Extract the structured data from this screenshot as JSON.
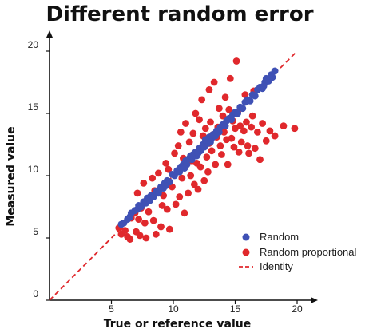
{
  "chart_data": {
    "type": "scatter",
    "title": "Different random error",
    "xlabel": "True or reference value",
    "ylabel": "Measured value",
    "xlim": [
      0,
      20
    ],
    "ylim": [
      0,
      20
    ],
    "xticks": [
      0,
      5,
      10,
      15,
      20
    ],
    "yticks": [
      0,
      5,
      10,
      15,
      20
    ],
    "x_tick_labels": [
      "5",
      "10",
      "15",
      "20"
    ],
    "y_tick_labels": [
      "0",
      "5",
      "10",
      "15",
      "20"
    ],
    "grid": false,
    "legend_position": "bottom-right",
    "legend": {
      "random": "Random",
      "proportional": "Random proportional",
      "identity": "Identity"
    },
    "series": [
      {
        "name": "Random",
        "kind": "scatter",
        "color": "#3f51b5",
        "points": [
          [
            5.8,
            6.1
          ],
          [
            6.0,
            6.2
          ],
          [
            6.3,
            6.5
          ],
          [
            6.5,
            6.7
          ],
          [
            6.6,
            7.0
          ],
          [
            6.9,
            7.2
          ],
          [
            7.1,
            7.3
          ],
          [
            7.2,
            7.6
          ],
          [
            7.4,
            7.5
          ],
          [
            7.6,
            7.9
          ],
          [
            7.8,
            7.8
          ],
          [
            7.9,
            8.2
          ],
          [
            8.1,
            8.0
          ],
          [
            8.2,
            8.4
          ],
          [
            8.4,
            8.3
          ],
          [
            8.6,
            8.7
          ],
          [
            8.8,
            8.6
          ],
          [
            9.0,
            9.1
          ],
          [
            9.2,
            9.0
          ],
          [
            9.3,
            9.4
          ],
          [
            9.5,
            9.6
          ],
          [
            9.7,
            9.5
          ],
          [
            9.9,
            10.1
          ],
          [
            10.1,
            10.0
          ],
          [
            10.3,
            10.4
          ],
          [
            10.5,
            10.3
          ],
          [
            10.6,
            10.7
          ],
          [
            10.8,
            10.9
          ],
          [
            11.0,
            11.2
          ],
          [
            11.1,
            10.9
          ],
          [
            11.3,
            11.4
          ],
          [
            11.5,
            11.3
          ],
          [
            11.6,
            11.7
          ],
          [
            11.8,
            11.9
          ],
          [
            11.9,
            11.6
          ],
          [
            12.1,
            12.2
          ],
          [
            12.2,
            12.0
          ],
          [
            12.4,
            12.5
          ],
          [
            12.5,
            12.3
          ],
          [
            12.7,
            12.8
          ],
          [
            12.8,
            12.6
          ],
          [
            12.9,
            13.1
          ],
          [
            13.1,
            13.0
          ],
          [
            13.2,
            13.3
          ],
          [
            13.4,
            13.2
          ],
          [
            13.5,
            13.6
          ],
          [
            13.7,
            13.5
          ],
          [
            13.8,
            13.9
          ],
          [
            14.0,
            14.1
          ],
          [
            14.2,
            14.0
          ],
          [
            14.3,
            14.4
          ],
          [
            14.5,
            14.6
          ],
          [
            14.7,
            14.5
          ],
          [
            14.8,
            14.9
          ],
          [
            15.0,
            15.1
          ],
          [
            15.2,
            15.0
          ],
          [
            15.4,
            15.5
          ],
          [
            15.6,
            15.4
          ],
          [
            15.8,
            15.9
          ],
          [
            16.0,
            16.1
          ],
          [
            16.2,
            16.0
          ],
          [
            16.4,
            16.5
          ],
          [
            16.6,
            16.4
          ],
          [
            16.8,
            16.9
          ],
          [
            17.0,
            17.1
          ],
          [
            17.2,
            17.0
          ],
          [
            17.4,
            17.5
          ],
          [
            17.5,
            17.8
          ],
          [
            17.7,
            17.6
          ],
          [
            17.9,
            18.1
          ],
          [
            18.0,
            17.9
          ],
          [
            18.2,
            18.4
          ],
          [
            17.3,
            17.2
          ],
          [
            12.0,
            11.8
          ],
          [
            11.4,
            11.6
          ],
          [
            10.9,
            10.6
          ],
          [
            12.6,
            12.9
          ],
          [
            13.0,
            12.7
          ],
          [
            9.4,
            9.2
          ],
          [
            8.9,
            8.9
          ]
        ]
      },
      {
        "name": "Random proportional",
        "kind": "scatter",
        "color": "#e0282c",
        "points": [
          [
            5.6,
            5.8
          ],
          [
            5.8,
            5.3
          ],
          [
            6.1,
            5.6
          ],
          [
            6.3,
            5.1
          ],
          [
            6.5,
            4.9
          ],
          [
            6.6,
            6.6
          ],
          [
            6.9,
            7.0
          ],
          [
            7.0,
            5.5
          ],
          [
            7.1,
            8.6
          ],
          [
            7.2,
            6.5
          ],
          [
            7.3,
            5.2
          ],
          [
            7.4,
            7.4
          ],
          [
            7.6,
            9.4
          ],
          [
            7.7,
            6.2
          ],
          [
            7.8,
            5.0
          ],
          [
            7.9,
            8.1
          ],
          [
            8.0,
            7.1
          ],
          [
            8.3,
            9.8
          ],
          [
            8.4,
            6.4
          ],
          [
            8.5,
            8.8
          ],
          [
            8.6,
            5.3
          ],
          [
            8.8,
            10.2
          ],
          [
            9.0,
            5.9
          ],
          [
            9.1,
            7.6
          ],
          [
            9.2,
            8.4
          ],
          [
            9.4,
            11.0
          ],
          [
            9.5,
            7.3
          ],
          [
            9.6,
            10.5
          ],
          [
            9.7,
            5.7
          ],
          [
            9.9,
            9.1
          ],
          [
            10.1,
            11.8
          ],
          [
            10.2,
            7.7
          ],
          [
            10.4,
            12.4
          ],
          [
            10.5,
            8.3
          ],
          [
            10.6,
            13.5
          ],
          [
            10.7,
            9.8
          ],
          [
            10.8,
            11.4
          ],
          [
            10.9,
            7.0
          ],
          [
            11.0,
            14.2
          ],
          [
            11.2,
            8.6
          ],
          [
            11.3,
            12.7
          ],
          [
            11.4,
            10.0
          ],
          [
            11.6,
            13.4
          ],
          [
            11.7,
            9.3
          ],
          [
            11.8,
            15.0
          ],
          [
            11.9,
            11.0
          ],
          [
            12.0,
            8.9
          ],
          [
            12.1,
            14.5
          ],
          [
            12.2,
            10.7
          ],
          [
            12.3,
            16.1
          ],
          [
            12.4,
            13.2
          ],
          [
            12.5,
            9.6
          ],
          [
            12.6,
            13.8
          ],
          [
            12.7,
            11.5
          ],
          [
            12.8,
            10.3
          ],
          [
            12.9,
            16.9
          ],
          [
            13.0,
            14.3
          ],
          [
            13.1,
            12.0
          ],
          [
            13.2,
            13.3
          ],
          [
            13.3,
            17.5
          ],
          [
            13.4,
            10.9
          ],
          [
            13.5,
            13.1
          ],
          [
            13.7,
            15.4
          ],
          [
            13.8,
            12.4
          ],
          [
            13.9,
            11.7
          ],
          [
            14.0,
            14.8
          ],
          [
            14.1,
            13.5
          ],
          [
            14.2,
            16.3
          ],
          [
            14.3,
            12.9
          ],
          [
            14.4,
            10.9
          ],
          [
            14.5,
            15.3
          ],
          [
            14.6,
            17.8
          ],
          [
            14.7,
            13.0
          ],
          [
            14.8,
            14.4
          ],
          [
            14.9,
            12.3
          ],
          [
            15.0,
            13.8
          ],
          [
            15.1,
            19.2
          ],
          [
            15.2,
            15.1
          ],
          [
            15.3,
            11.9
          ],
          [
            15.4,
            14.0
          ],
          [
            15.5,
            12.7
          ],
          [
            15.7,
            13.6
          ],
          [
            15.8,
            16.5
          ],
          [
            15.9,
            14.3
          ],
          [
            16.0,
            12.4
          ],
          [
            16.1,
            11.8
          ],
          [
            16.3,
            13.9
          ],
          [
            16.4,
            14.8
          ],
          [
            16.6,
            12.2
          ],
          [
            16.8,
            13.5
          ],
          [
            17.0,
            11.3
          ],
          [
            17.2,
            14.2
          ],
          [
            17.5,
            12.8
          ],
          [
            17.8,
            13.6
          ],
          [
            18.2,
            13.2
          ],
          [
            18.9,
            14.0
          ],
          [
            19.8,
            13.8
          ],
          [
            13.6,
            13.9
          ],
          [
            12.9,
            12.6
          ],
          [
            11.5,
            11.2
          ],
          [
            16.5,
            16.8
          ]
        ]
      },
      {
        "name": "Identity",
        "kind": "line",
        "style": "dashed",
        "color": "#e0282c",
        "x": [
          0,
          20
        ],
        "y": [
          0,
          20
        ]
      }
    ]
  }
}
